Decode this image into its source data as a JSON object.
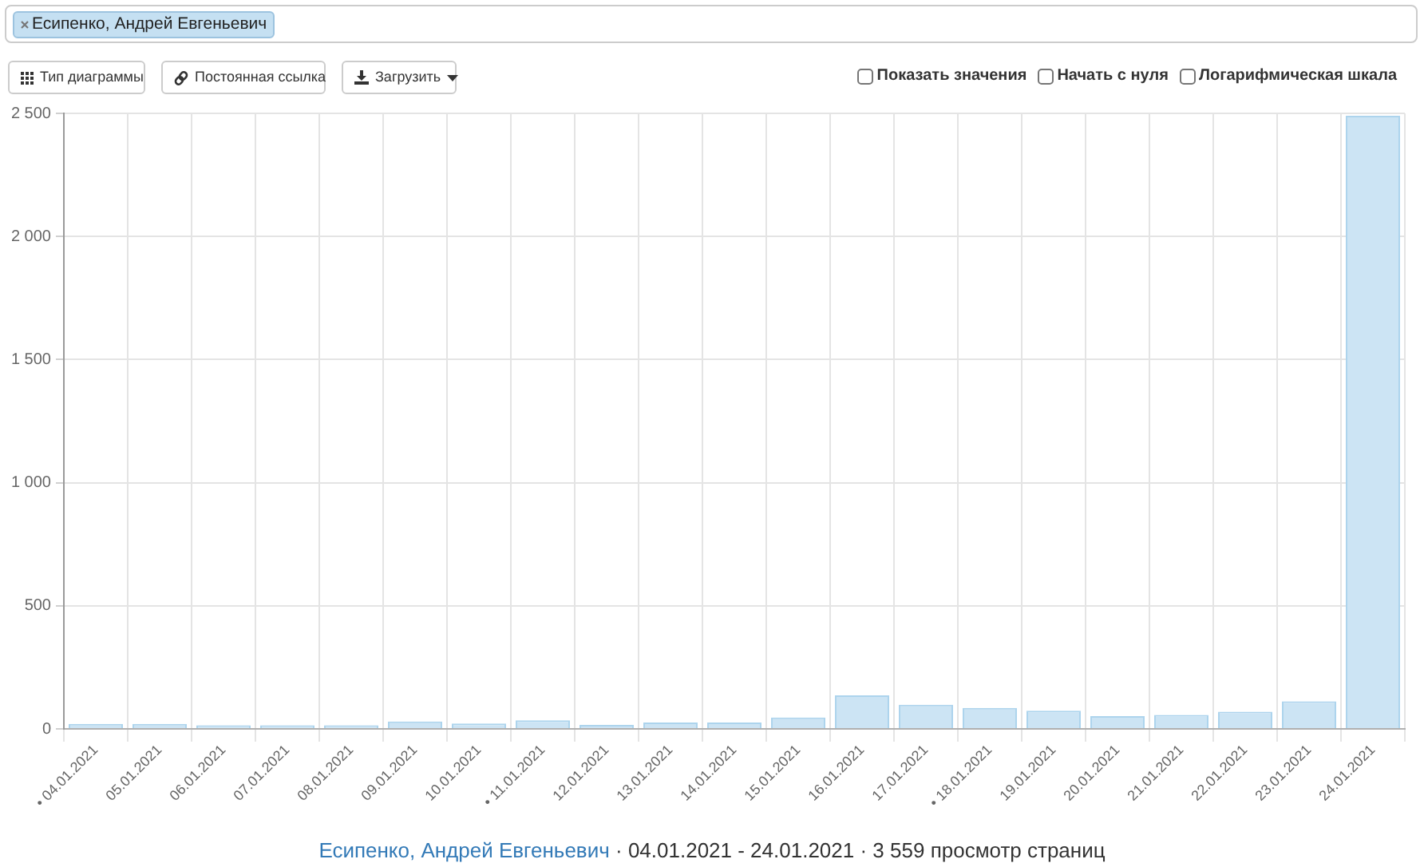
{
  "chart_data": {
    "type": "bar",
    "categories": [
      "• 04.01.2021",
      "05.01.2021",
      "06.01.2021",
      "07.01.2021",
      "08.01.2021",
      "09.01.2021",
      "10.01.2021",
      "• 11.01.2021",
      "12.01.2021",
      "13.01.2021",
      "14.01.2021",
      "15.01.2021",
      "16.01.2021",
      "17.01.2021",
      "• 18.01.2021",
      "19.01.2021",
      "20.01.2021",
      "21.01.2021",
      "22.01.2021",
      "23.01.2021",
      "24.01.2021"
    ],
    "values": [
      20,
      20,
      15,
      15,
      15,
      30,
      22,
      35,
      16,
      26,
      26,
      46,
      136,
      98,
      85,
      74,
      52,
      57,
      70,
      112,
      2490
    ],
    "color": "#cce4f4",
    "ylim": [
      0,
      2500
    ],
    "yticks": [
      0,
      500,
      {
        "value": 1000,
        "label": "1 000"
      },
      {
        "value": 1500,
        "label": "1 500"
      },
      {
        "value": 2000,
        "label": "2 000"
      },
      {
        "value": 2500,
        "label": "2 500"
      }
    ],
    "grid": true,
    "annotations": [
      "Есипенко, Андрей Евгеньевич",
      "Тип диаграммы",
      "Постоянная ссылка",
      "Загрузить",
      "Показать значения",
      "Начать с нуля",
      "Логарифмическая шкала",
      "Есипенко, Андрей Евгеньевич",
      "· 04.01.2021 - 24.01.2021 · 3 559 просмотр страниц"
    ]
  }
}
